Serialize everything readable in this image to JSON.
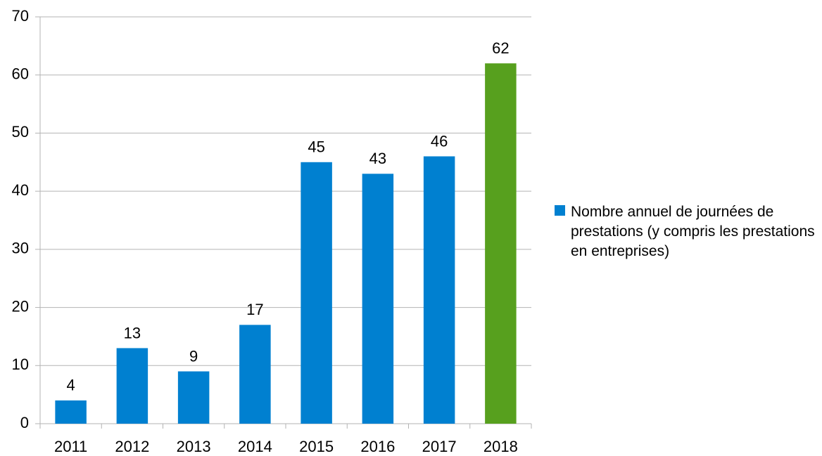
{
  "chart_data": {
    "type": "bar",
    "categories": [
      "2011",
      "2012",
      "2013",
      "2014",
      "2015",
      "2016",
      "2017",
      "2018"
    ],
    "series": [
      {
        "name": "Nombre annuel de journées de prestations (y compris les prestations en entreprises)",
        "color": "#0080d0",
        "bar_colors": [
          "#0080d0",
          "#0080d0",
          "#0080d0",
          "#0080d0",
          "#0080d0",
          "#0080d0",
          "#0080d0",
          "#57a01e"
        ],
        "values": [
          4,
          13,
          9,
          17,
          45,
          43,
          46,
          62
        ]
      }
    ],
    "ylim": [
      0,
      70
    ],
    "yticks": [
      0,
      10,
      20,
      30,
      40,
      50,
      60,
      70
    ],
    "grid": true,
    "legend": "right"
  }
}
